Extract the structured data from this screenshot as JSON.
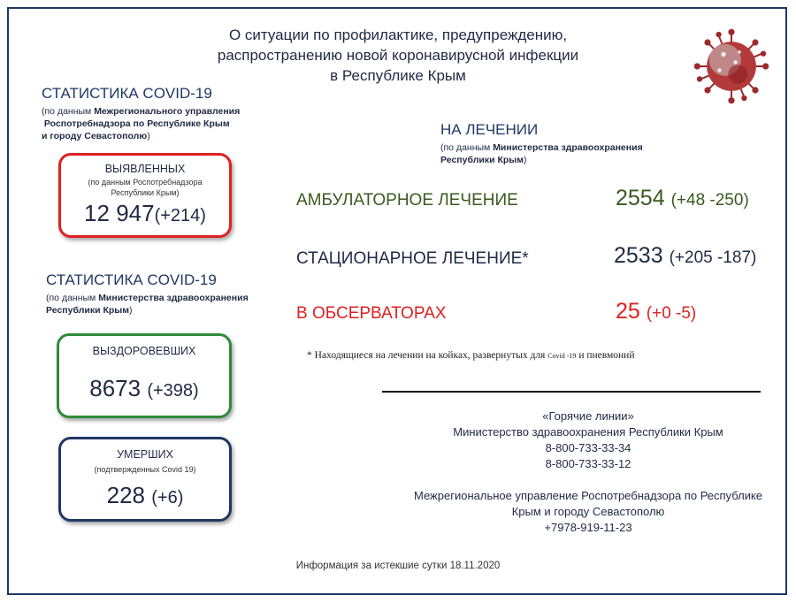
{
  "title": {
    "line1": "О ситуации по профилактике, предупреждению,",
    "line2": "распространению новой коронавирусной инфекции",
    "line3": "в Республике Крым"
  },
  "stats_rpn": {
    "heading": "СТАТИСТИКА COVID-19",
    "source_prefix": "(по данным ",
    "source_bold1": "Межрегионального управления",
    "source_bold2": "Роспотребнадзора по Республике Крым",
    "source_bold3": "и городу Севастополю",
    "source_suffix": ")"
  },
  "detected": {
    "label": "ВЫЯВЛЕННЫХ",
    "sub1": "(по данным Роспотребнадзора",
    "sub2": "Республики Крым)",
    "value": "12 947",
    "delta": "(+214)",
    "border_color": "#e02020"
  },
  "stats_mz": {
    "heading": "СТАТИСТИКА COVID-19",
    "source_prefix": "(по данным ",
    "source_bold1": "Министерства здравоохранения",
    "source_bold2": "Республики Крым",
    "source_suffix": ")"
  },
  "recovered": {
    "label": "ВЫЗДОРОВЕВШИХ",
    "value": "8673",
    "delta": "(+398)",
    "border_color": "#2e8b3a"
  },
  "deaths": {
    "label": "УМЕРШИХ",
    "sub": "(подтвержденных Covid 19)",
    "value": "228",
    "delta": "(+6)",
    "border_color": "#1f3864"
  },
  "treatment": {
    "heading": "НА ЛЕЧЕНИИ",
    "source_prefix": "(по данным ",
    "source_bold1": "Министерства здравоохранения",
    "source_bold2": "Республики Крым",
    "source_suffix": ")",
    "rows": [
      {
        "label": "АМБУЛАТОРНОЕ ЛЕЧЕНИЕ",
        "value": "2554",
        "delta": "(+48 -250)",
        "label_color": "#3a5a1e",
        "value_color": "#3a5a1e"
      },
      {
        "label": "СТАЦИОНАРНОЕ ЛЕЧЕНИЕ*",
        "value": "2533",
        "delta": "(+205 -187)",
        "label_color": "#1f2a44",
        "value_color": "#1f2a44"
      },
      {
        "label": "В ОБСЕРВАТОРАХ",
        "value": "25",
        "delta": "(+0  -5)",
        "label_color": "#e02020",
        "value_color": "#e02020"
      }
    ]
  },
  "footnote": {
    "part1": "* Находящиеся на лечении на койках, развернутых для ",
    "covid": "Covid -19",
    "part2": " и пневмоний"
  },
  "hotlines": {
    "title": "«Горячие линии»",
    "org1": "Министерство здравоохранения Республики Крым",
    "phone1": "8-800-733-33-34",
    "phone2": "8-800-733-33-12",
    "org2_line1": "Межрегиональное управление Роспотребнадзора по Республике",
    "org2_line2": "Крым и городу Севастополю",
    "phone3": "+7978-919-11-23"
  },
  "info": "Информация за истекшие сутки 18.11.2020",
  "icons": {
    "virus": "coronavirus-icon"
  }
}
